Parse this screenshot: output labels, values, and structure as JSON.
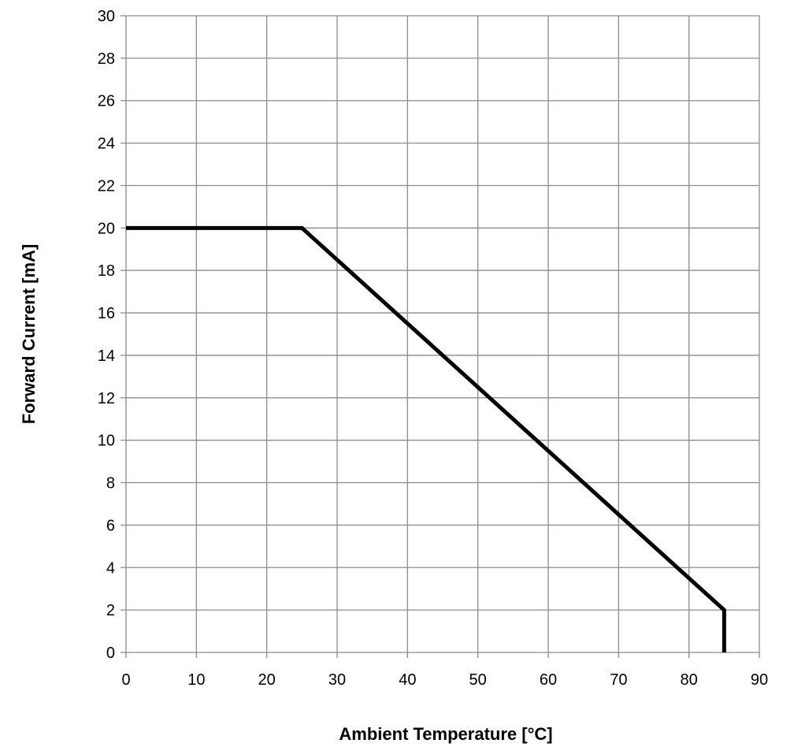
{
  "chart_data": {
    "type": "line",
    "title": "",
    "xlabel": "Ambient Temperature [°C]",
    "ylabel": "Forward Current [mA]",
    "xlim": [
      0,
      90
    ],
    "ylim": [
      0,
      30
    ],
    "x_ticks": [
      0,
      10,
      20,
      30,
      40,
      50,
      60,
      70,
      80,
      90
    ],
    "y_ticks": [
      0,
      2,
      4,
      6,
      8,
      10,
      12,
      14,
      16,
      18,
      20,
      22,
      24,
      26,
      28,
      30
    ],
    "grid": true,
    "legend": "none",
    "series": [
      {
        "color": "#000000",
        "points": [
          [
            0,
            20
          ],
          [
            25,
            20
          ],
          [
            85,
            2
          ],
          [
            85,
            0
          ]
        ]
      }
    ]
  }
}
